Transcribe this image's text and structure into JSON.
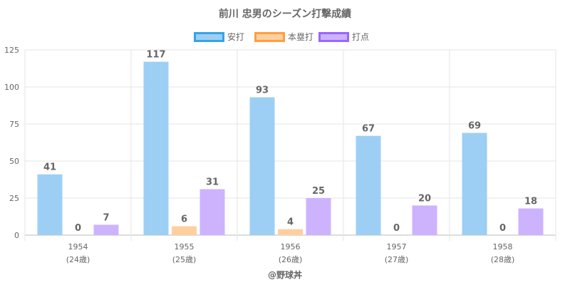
{
  "chart_data": {
    "type": "bar",
    "title": "前川 忠男のシーズン打撃成績",
    "categories": [
      "1954",
      "1955",
      "1956",
      "1957",
      "1958"
    ],
    "category_sublabels": [
      "(24歳)",
      "(25歳)",
      "(26歳)",
      "(27歳)",
      "(28歳)"
    ],
    "series": [
      {
        "name": "安打",
        "values": [
          41,
          117,
          93,
          67,
          69
        ],
        "fill": "#9dcff4",
        "stroke": "#36a2eb"
      },
      {
        "name": "本塁打",
        "values": [
          0,
          6,
          4,
          0,
          0
        ],
        "fill": "#ffcf9f",
        "stroke": "#ff9f40"
      },
      {
        "name": "打点",
        "values": [
          7,
          31,
          25,
          20,
          18
        ],
        "fill": "#cdb3fe",
        "stroke": "#9966ff"
      }
    ],
    "ylim": [
      0,
      125
    ],
    "yticks": [
      0,
      25,
      50,
      75,
      100,
      125
    ],
    "grid": true,
    "legend_position": "top",
    "xlabel": "",
    "ylabel": "",
    "footer": "@野球丼"
  }
}
